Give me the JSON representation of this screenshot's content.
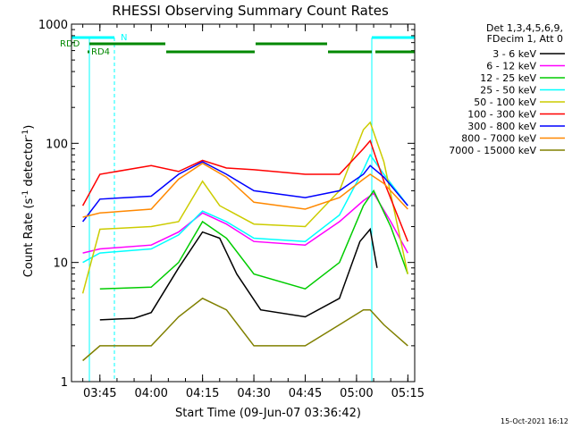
{
  "chart_data": {
    "type": "line",
    "title": "RHESSI Observing Summary Count Rates",
    "xlabel": "Start Time (09-Jun-07 03:36:42)",
    "ylabel_main": "Count Rate (s",
    "ylabel_sup1": "-1",
    "ylabel_mid": " detector",
    "ylabel_sup2": "-1",
    "ylabel_end": ")",
    "yscale": "log",
    "ylim": [
      1,
      1000
    ],
    "xlim": [
      "03:36:42",
      "05:17:00"
    ],
    "xticks": [
      "03:45",
      "04:00",
      "04:15",
      "04:30",
      "04:45",
      "05:00",
      "05:15"
    ],
    "yticks": [
      "1",
      "10",
      "100",
      "1000"
    ],
    "legend_header": [
      "Det 1,3,4,5,6,9,",
      "FDecim 1, Att 0"
    ],
    "legend_position": "right",
    "footer_date": "15-Oct-2021 16:12",
    "flags": {
      "saa_label": "N",
      "rdd_label": "RDD",
      "rd4_label": "RD4",
      "saa_color": "#00ffff",
      "decim_color": "#008800"
    },
    "series": [
      {
        "name": "3 - 6 keV",
        "color": "#000000",
        "points": [
          [
            "03:45",
            3.3
          ],
          [
            "03:55",
            3.4
          ],
          [
            "04:00",
            3.8
          ],
          [
            "04:08",
            9
          ],
          [
            "04:15",
            18
          ],
          [
            "04:20",
            16
          ],
          [
            "04:25",
            8
          ],
          [
            "04:32",
            4
          ],
          [
            "04:45",
            3.5
          ],
          [
            "04:55",
            5
          ],
          [
            "05:01",
            15
          ],
          [
            "05:04",
            19
          ],
          [
            "05:06",
            9
          ]
        ]
      },
      {
        "name": "6 - 12 keV",
        "color": "#ff00ff",
        "points": [
          [
            "03:40",
            12
          ],
          [
            "03:45",
            13
          ],
          [
            "04:00",
            14
          ],
          [
            "04:08",
            18
          ],
          [
            "04:15",
            26
          ],
          [
            "04:22",
            21
          ],
          [
            "04:30",
            15
          ],
          [
            "04:45",
            14
          ],
          [
            "04:55",
            22
          ],
          [
            "05:02",
            33
          ],
          [
            "05:05",
            38
          ],
          [
            "05:10",
            22
          ],
          [
            "05:15",
            12
          ]
        ]
      },
      {
        "name": "12 - 25 keV",
        "color": "#00cc00",
        "points": [
          [
            "03:45",
            6
          ],
          [
            "04:00",
            6.2
          ],
          [
            "04:08",
            10
          ],
          [
            "04:15",
            22
          ],
          [
            "04:22",
            16
          ],
          [
            "04:30",
            8
          ],
          [
            "04:45",
            6
          ],
          [
            "04:55",
            10
          ],
          [
            "05:02",
            30
          ],
          [
            "05:05",
            40
          ],
          [
            "05:10",
            20
          ],
          [
            "05:15",
            8
          ]
        ]
      },
      {
        "name": "25 - 50 keV",
        "color": "#00ffff",
        "points": [
          [
            "03:40",
            10
          ],
          [
            "03:45",
            12
          ],
          [
            "04:00",
            13
          ],
          [
            "04:08",
            17
          ],
          [
            "04:15",
            27
          ],
          [
            "04:22",
            22
          ],
          [
            "04:30",
            16
          ],
          [
            "04:45",
            15
          ],
          [
            "04:55",
            25
          ],
          [
            "05:02",
            60
          ],
          [
            "05:04",
            80
          ],
          [
            "05:08",
            55
          ],
          [
            "05:15",
            30
          ]
        ]
      },
      {
        "name": "50 - 100 keV",
        "color": "#cccc00",
        "points": [
          [
            "03:40",
            5.5
          ],
          [
            "03:45",
            19
          ],
          [
            "04:00",
            20
          ],
          [
            "04:08",
            22
          ],
          [
            "04:15",
            48
          ],
          [
            "04:20",
            30
          ],
          [
            "04:30",
            21
          ],
          [
            "04:45",
            20
          ],
          [
            "04:55",
            40
          ],
          [
            "05:02",
            130
          ],
          [
            "05:04",
            150
          ],
          [
            "05:08",
            70
          ],
          [
            "05:15",
            8
          ]
        ]
      },
      {
        "name": "100 - 300 keV",
        "color": "#ff0000",
        "points": [
          [
            "03:40",
            30
          ],
          [
            "03:45",
            55
          ],
          [
            "04:00",
            65
          ],
          [
            "04:08",
            58
          ],
          [
            "04:15",
            72
          ],
          [
            "04:22",
            62
          ],
          [
            "04:30",
            60
          ],
          [
            "04:45",
            55
          ],
          [
            "04:55",
            55
          ],
          [
            "05:02",
            90
          ],
          [
            "05:04",
            105
          ],
          [
            "05:08",
            48
          ],
          [
            "05:15",
            15
          ]
        ]
      },
      {
        "name": "300 - 800 keV",
        "color": "#0000ff",
        "points": [
          [
            "03:40",
            22
          ],
          [
            "03:45",
            34
          ],
          [
            "04:00",
            36
          ],
          [
            "04:08",
            55
          ],
          [
            "04:15",
            70
          ],
          [
            "04:22",
            55
          ],
          [
            "04:30",
            40
          ],
          [
            "04:45",
            35
          ],
          [
            "04:55",
            40
          ],
          [
            "05:02",
            55
          ],
          [
            "05:04",
            65
          ],
          [
            "05:08",
            52
          ],
          [
            "05:15",
            30
          ]
        ]
      },
      {
        "name": "800 - 7000 keV",
        "color": "#ff8800",
        "points": [
          [
            "03:40",
            24
          ],
          [
            "03:45",
            26
          ],
          [
            "04:00",
            28
          ],
          [
            "04:08",
            50
          ],
          [
            "04:15",
            68
          ],
          [
            "04:22",
            52
          ],
          [
            "04:30",
            32
          ],
          [
            "04:45",
            28
          ],
          [
            "04:55",
            35
          ],
          [
            "05:02",
            50
          ],
          [
            "05:04",
            55
          ],
          [
            "05:08",
            46
          ],
          [
            "05:15",
            28
          ]
        ]
      },
      {
        "name": "7000 - 15000 keV",
        "color": "#808000",
        "points": [
          [
            "03:40",
            1.5
          ],
          [
            "03:45",
            2
          ],
          [
            "04:00",
            2
          ],
          [
            "04:08",
            3.5
          ],
          [
            "04:15",
            5
          ],
          [
            "04:22",
            4
          ],
          [
            "04:30",
            2
          ],
          [
            "04:45",
            2
          ],
          [
            "04:55",
            3
          ],
          [
            "05:02",
            4
          ],
          [
            "05:04",
            4
          ],
          [
            "05:08",
            3
          ],
          [
            "05:15",
            2
          ]
        ]
      }
    ]
  }
}
